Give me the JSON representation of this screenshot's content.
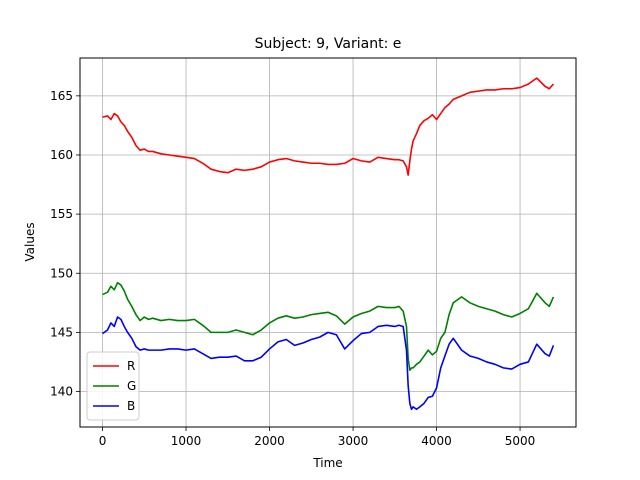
{
  "chart_data": {
    "type": "line",
    "title": "Subject: 9, Variant: e",
    "xlabel": "Time",
    "ylabel": "Values",
    "xlim": [
      -270,
      5670
    ],
    "ylim": [
      137.0,
      168.2
    ],
    "xticks": [
      0,
      1000,
      2000,
      3000,
      4000,
      5000
    ],
    "yticks": [
      140,
      145,
      150,
      155,
      160,
      165
    ],
    "grid": true,
    "legend_position": "lower-left",
    "series": [
      {
        "name": "R",
        "color": "#ff0000",
        "x": [
          0,
          60,
          100,
          140,
          180,
          220,
          260,
          300,
          350,
          400,
          450,
          500,
          550,
          600,
          700,
          800,
          900,
          1000,
          1100,
          1200,
          1300,
          1400,
          1500,
          1600,
          1700,
          1800,
          1900,
          2000,
          2100,
          2200,
          2300,
          2400,
          2500,
          2600,
          2700,
          2800,
          2900,
          3000,
          3100,
          3200,
          3300,
          3400,
          3500,
          3550,
          3600,
          3640,
          3660,
          3680,
          3700,
          3720,
          3760,
          3800,
          3850,
          3900,
          3950,
          4000,
          4050,
          4100,
          4150,
          4200,
          4300,
          4400,
          4500,
          4600,
          4700,
          4800,
          4900,
          5000,
          5100,
          5200,
          5300,
          5350,
          5400
        ],
        "values": [
          163.2,
          163.3,
          163.0,
          163.5,
          163.3,
          162.8,
          162.5,
          162.0,
          161.5,
          160.8,
          160.4,
          160.5,
          160.3,
          160.3,
          160.1,
          160.0,
          159.9,
          159.8,
          159.7,
          159.3,
          158.8,
          158.6,
          158.5,
          158.8,
          158.7,
          158.8,
          159.0,
          159.4,
          159.6,
          159.7,
          159.5,
          159.4,
          159.3,
          159.3,
          159.2,
          159.2,
          159.3,
          159.7,
          159.5,
          159.4,
          159.8,
          159.7,
          159.6,
          159.6,
          159.5,
          159.0,
          158.3,
          159.5,
          160.5,
          161.2,
          161.8,
          162.5,
          162.9,
          163.1,
          163.4,
          163.0,
          163.5,
          164.0,
          164.3,
          164.7,
          165.0,
          165.3,
          165.4,
          165.5,
          165.5,
          165.6,
          165.6,
          165.7,
          166.0,
          166.5,
          165.8,
          165.6,
          166.0
        ]
      },
      {
        "name": "G",
        "color": "#008000",
        "x": [
          0,
          60,
          100,
          140,
          180,
          220,
          260,
          300,
          350,
          400,
          450,
          500,
          550,
          600,
          700,
          800,
          900,
          1000,
          1100,
          1200,
          1300,
          1400,
          1500,
          1600,
          1700,
          1800,
          1900,
          2000,
          2100,
          2200,
          2300,
          2400,
          2500,
          2600,
          2700,
          2800,
          2900,
          3000,
          3100,
          3200,
          3300,
          3400,
          3500,
          3550,
          3600,
          3640,
          3660,
          3680,
          3700,
          3720,
          3760,
          3800,
          3850,
          3900,
          3950,
          4000,
          4050,
          4100,
          4150,
          4200,
          4300,
          4400,
          4500,
          4600,
          4700,
          4800,
          4900,
          5000,
          5100,
          5200,
          5300,
          5350,
          5400
        ],
        "values": [
          148.2,
          148.4,
          148.9,
          148.6,
          149.2,
          149.0,
          148.5,
          147.8,
          147.2,
          146.5,
          146.0,
          146.3,
          146.1,
          146.2,
          146.0,
          146.1,
          146.0,
          146.0,
          146.1,
          145.6,
          145.0,
          145.0,
          145.0,
          145.2,
          145.0,
          144.8,
          145.2,
          145.8,
          146.2,
          146.4,
          146.2,
          146.3,
          146.5,
          146.6,
          146.7,
          146.4,
          145.7,
          146.3,
          146.6,
          146.8,
          147.2,
          147.1,
          147.1,
          147.2,
          146.8,
          145.5,
          142.8,
          141.8,
          142.0,
          142.0,
          142.3,
          142.5,
          143.0,
          143.5,
          143.1,
          143.4,
          144.5,
          145.0,
          146.5,
          147.5,
          148.0,
          147.5,
          147.2,
          147.0,
          146.8,
          146.5,
          146.3,
          146.6,
          147.0,
          148.3,
          147.5,
          147.2,
          148.0
        ]
      },
      {
        "name": "B",
        "color": "#0000ff",
        "x": [
          0,
          60,
          100,
          140,
          180,
          220,
          260,
          300,
          350,
          400,
          450,
          500,
          550,
          600,
          700,
          800,
          900,
          1000,
          1100,
          1200,
          1300,
          1400,
          1500,
          1600,
          1700,
          1800,
          1900,
          2000,
          2100,
          2200,
          2300,
          2400,
          2500,
          2600,
          2700,
          2800,
          2900,
          3000,
          3100,
          3200,
          3300,
          3400,
          3500,
          3550,
          3600,
          3640,
          3660,
          3680,
          3700,
          3720,
          3760,
          3800,
          3850,
          3900,
          3950,
          4000,
          4050,
          4100,
          4150,
          4200,
          4300,
          4400,
          4500,
          4600,
          4700,
          4800,
          4900,
          5000,
          5100,
          5200,
          5300,
          5350,
          5400
        ],
        "values": [
          144.9,
          145.2,
          145.8,
          145.5,
          146.3,
          146.1,
          145.5,
          145.0,
          144.5,
          143.8,
          143.5,
          143.6,
          143.5,
          143.5,
          143.5,
          143.6,
          143.6,
          143.5,
          143.6,
          143.2,
          142.8,
          142.9,
          142.9,
          143.0,
          142.6,
          142.6,
          142.9,
          143.6,
          144.2,
          144.4,
          143.9,
          144.1,
          144.4,
          144.6,
          145.0,
          144.8,
          143.6,
          144.3,
          144.9,
          145.0,
          145.5,
          145.6,
          145.5,
          145.6,
          145.5,
          143.5,
          140.5,
          139.0,
          138.5,
          138.7,
          138.5,
          138.7,
          139.0,
          139.5,
          139.6,
          140.3,
          142.0,
          143.0,
          144.0,
          144.5,
          143.5,
          143.0,
          142.8,
          142.5,
          142.3,
          142.0,
          141.9,
          142.3,
          142.5,
          144.0,
          143.2,
          143.0,
          143.9
        ]
      }
    ]
  }
}
